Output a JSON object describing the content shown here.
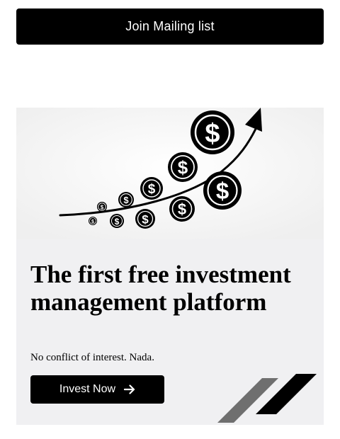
{
  "mailing": {
    "button_label": "Join Mailing list"
  },
  "hero": {
    "title": "The first free investment management platform",
    "subtitle": "No conflict of interest. Nada.",
    "cta_label": "Invest Now",
    "illustration_icon": "rising-coins-chart-icon",
    "cta_icon": "arrow-right-icon"
  },
  "colors": {
    "button_bg": "#000000",
    "button_text": "#ffffff",
    "card_bg": "#f0f0f2",
    "stripe_gray": "#6f6f6f",
    "stripe_black": "#000000"
  }
}
